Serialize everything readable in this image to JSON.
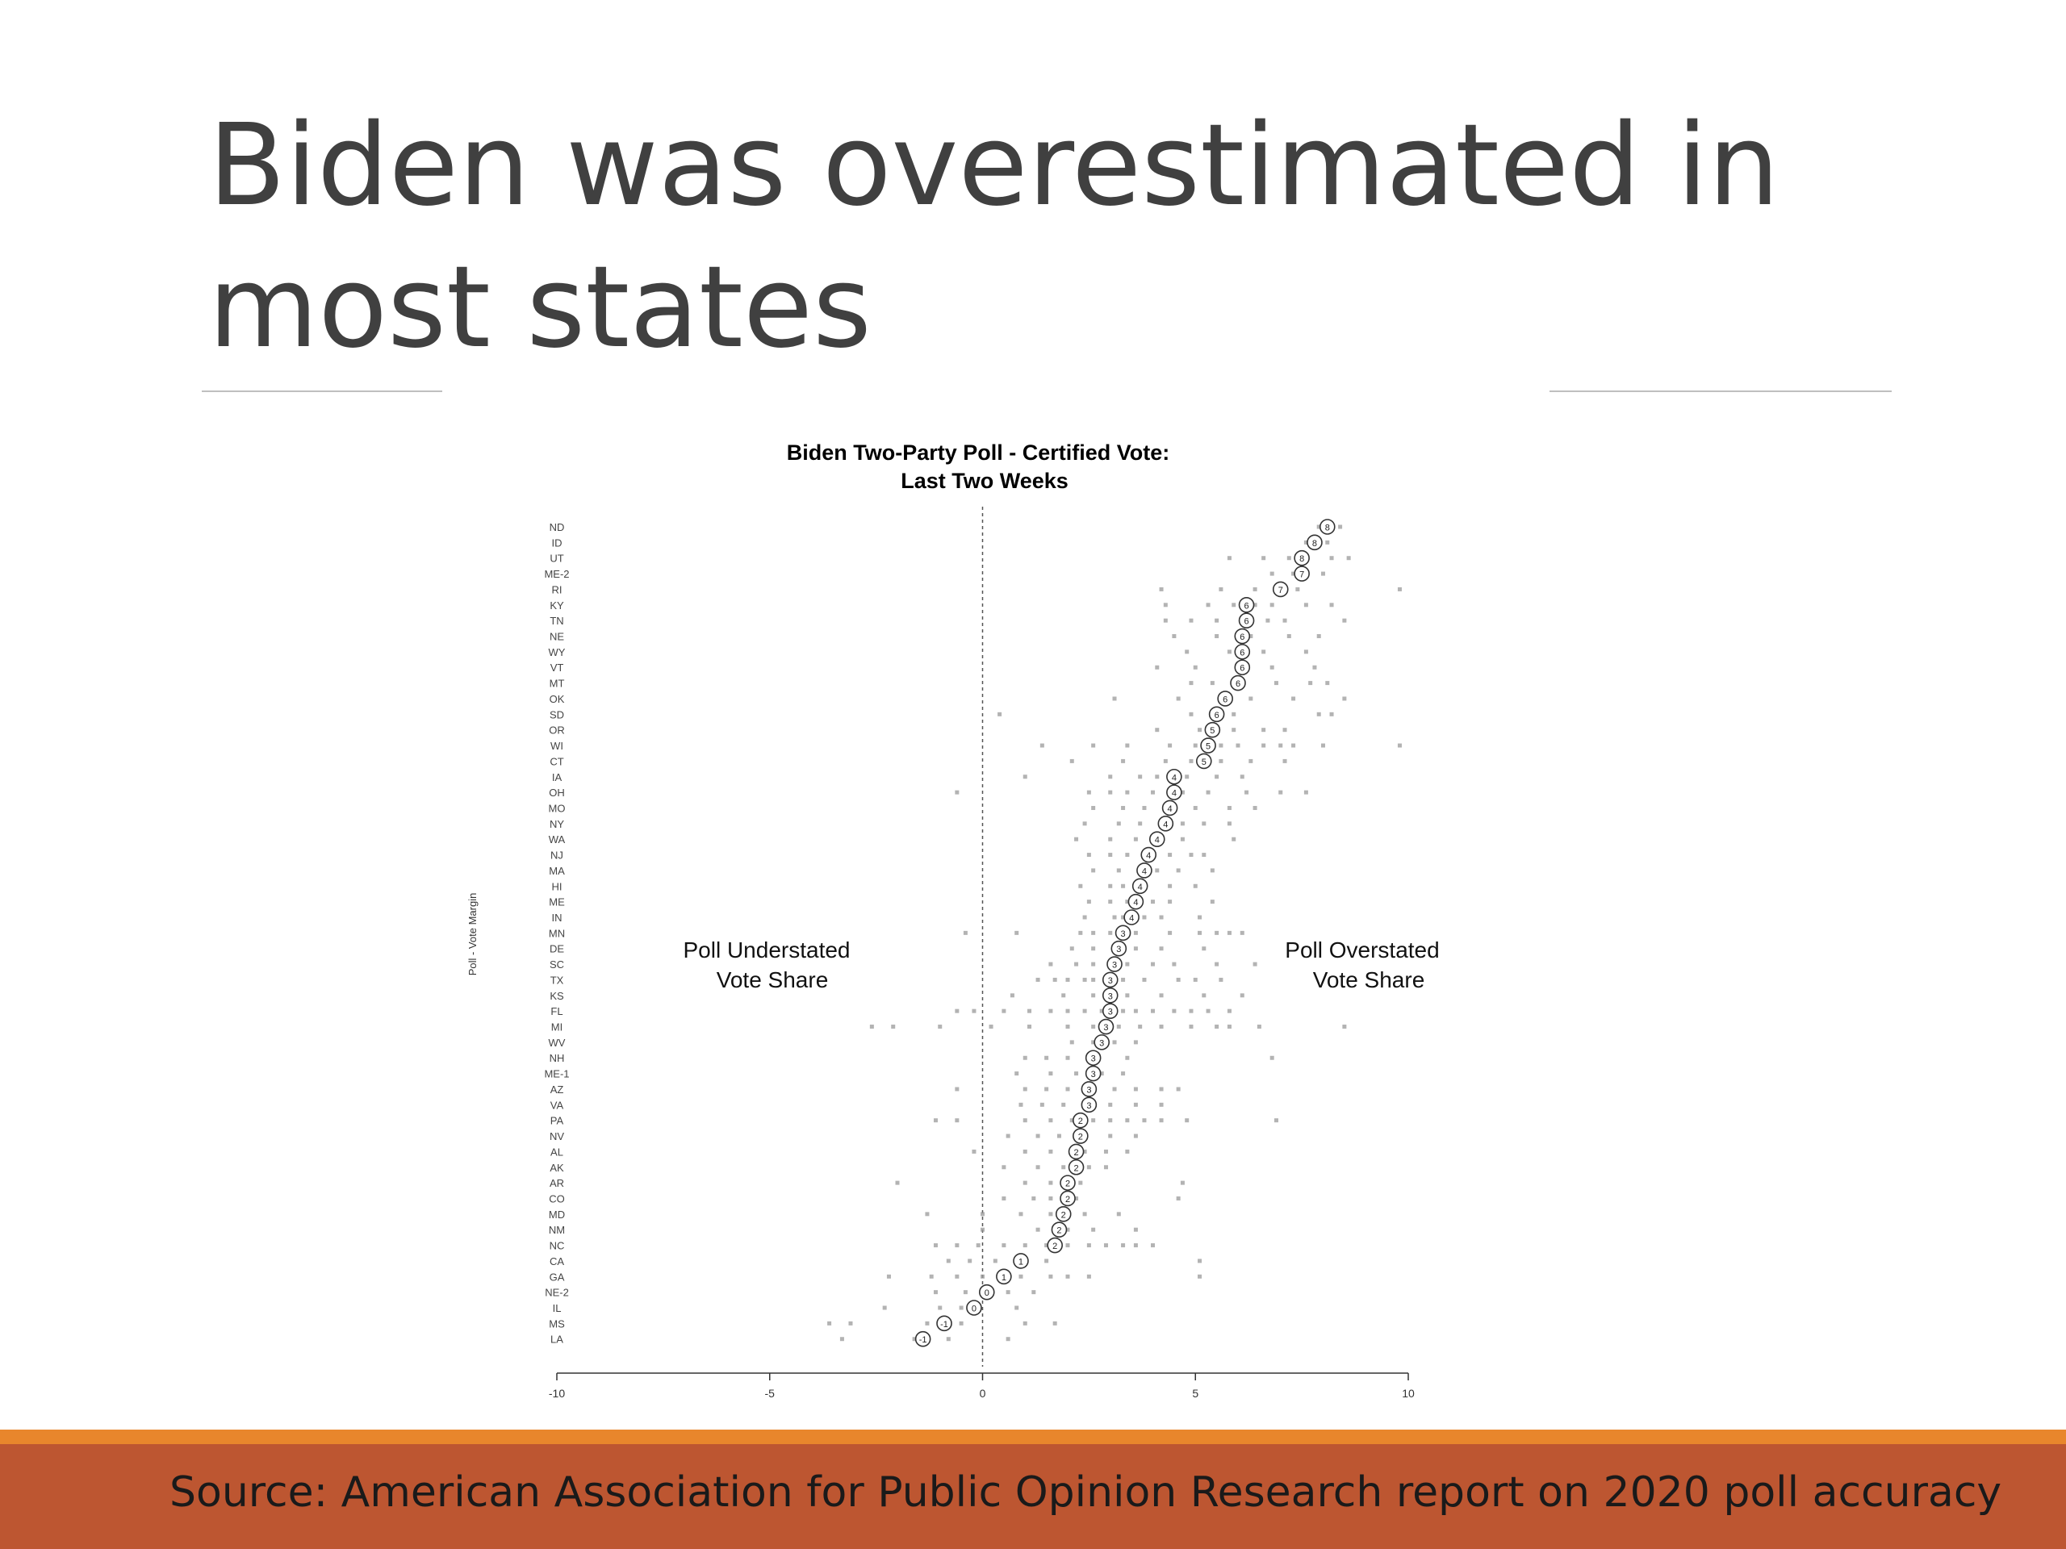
{
  "slide": {
    "title_line1": "Biden was overestimated in",
    "title_line2": "most states",
    "source": "Source: American Association for Public Opinion Research report on 2020 poll accuracy"
  },
  "chart_data": {
    "type": "scatter",
    "title_line1": "Biden Two-Party Poll - Certified Vote:",
    "title_line2": "Last Two Weeks",
    "ylabel": "Poll - Vote Margin",
    "xlim": [
      -10,
      10
    ],
    "x_ticks": [
      -10,
      -5,
      0,
      5,
      10
    ],
    "x_tick_labels": [
      "-10",
      "-5",
      "0",
      "5",
      "10"
    ],
    "reference_line": 0,
    "annotations": {
      "left_line1": "Poll Understated",
      "left_line2": "Vote Share",
      "right_line1": "Poll Overstated",
      "right_line2": "Vote Share"
    },
    "states": [
      "ND",
      "ID",
      "UT",
      "ME-2",
      "RI",
      "KY",
      "TN",
      "NE",
      "WY",
      "VT",
      "MT",
      "OK",
      "SD",
      "OR",
      "WI",
      "CT",
      "IA",
      "OH",
      "MO",
      "NY",
      "WA",
      "NJ",
      "MA",
      "HI",
      "ME",
      "IN",
      "MN",
      "DE",
      "SC",
      "TX",
      "KS",
      "FL",
      "MI",
      "WV",
      "NH",
      "ME-1",
      "AZ",
      "VA",
      "PA",
      "NV",
      "AL",
      "AK",
      "AR",
      "CO",
      "MD",
      "NM",
      "NC",
      "CA",
      "GA",
      "NE-2",
      "IL",
      "MS",
      "LA"
    ],
    "averages": [
      8.1,
      7.8,
      7.5,
      7.5,
      7.0,
      6.2,
      6.2,
      6.1,
      6.1,
      6.1,
      6.0,
      5.7,
      5.5,
      5.4,
      5.3,
      5.2,
      4.5,
      4.5,
      4.4,
      4.3,
      4.1,
      3.9,
      3.8,
      3.7,
      3.6,
      3.5,
      3.3,
      3.2,
      3.1,
      3.0,
      3.0,
      3.0,
      2.9,
      2.8,
      2.6,
      2.6,
      2.5,
      2.5,
      2.3,
      2.3,
      2.2,
      2.2,
      2.0,
      2.0,
      1.9,
      1.8,
      1.7,
      0.9,
      0.5,
      0.1,
      -0.2,
      -0.9,
      -1.4
    ],
    "average_labels": [
      "8",
      "8",
      "8",
      "7",
      "7",
      "6",
      "6",
      "6",
      "6",
      "6",
      "6",
      "6",
      "6",
      "5",
      "5",
      "5",
      "4",
      "4",
      "4",
      "4",
      "4",
      "4",
      "4",
      "4",
      "4",
      "4",
      "3",
      "3",
      "3",
      "3",
      "3",
      "3",
      "3",
      "3",
      "3",
      "3",
      "3",
      "3",
      "2",
      "2",
      "2",
      "2",
      "2",
      "2",
      "2",
      "2",
      "2",
      "1",
      "1",
      "0",
      "0",
      "-1",
      "-1"
    ],
    "poll_points": [
      [
        7.9,
        8.4
      ],
      [
        7.6,
        8.1
      ],
      [
        5.8,
        6.6,
        7.2,
        8.2,
        8.6
      ],
      [
        6.8,
        7.3,
        8.0
      ],
      [
        4.2,
        5.6,
        6.4,
        7.4,
        9.8
      ],
      [
        4.3,
        5.3,
        5.9,
        6.4,
        6.8,
        7.6,
        8.2
      ],
      [
        4.3,
        4.9,
        5.5,
        6.7,
        7.1,
        8.5
      ],
      [
        4.5,
        5.5,
        6.3,
        7.2,
        7.9
      ],
      [
        4.8,
        5.8,
        6.6,
        7.6
      ],
      [
        4.1,
        5.0,
        6.8,
        7.8
      ],
      [
        4.9,
        5.4,
        6.9,
        7.7,
        8.1
      ],
      [
        3.1,
        4.6,
        6.3,
        7.3,
        8.5
      ],
      [
        0.4,
        4.9,
        5.9,
        7.9,
        8.2
      ],
      [
        4.1,
        5.1,
        5.9,
        6.6,
        7.1
      ],
      [
        1.4,
        2.6,
        3.4,
        4.4,
        5.0,
        5.6,
        6.0,
        6.6,
        7.0,
        7.3,
        8.0,
        9.8
      ],
      [
        2.1,
        3.3,
        4.3,
        4.9,
        5.6,
        6.3,
        7.1
      ],
      [
        1.0,
        3.0,
        3.7,
        4.1,
        4.8,
        5.5,
        6.1
      ],
      [
        -0.6,
        2.5,
        3.0,
        3.4,
        4.0,
        4.7,
        5.3,
        6.2,
        7.0,
        7.6
      ],
      [
        2.6,
        3.3,
        3.8,
        5.0,
        5.8,
        6.4
      ],
      [
        2.4,
        3.2,
        3.7,
        4.7,
        5.2,
        5.8
      ],
      [
        2.2,
        3.0,
        3.6,
        4.7,
        5.9
      ],
      [
        2.5,
        3.0,
        3.4,
        4.4,
        4.9,
        5.2
      ],
      [
        2.6,
        3.2,
        4.1,
        4.6,
        5.4
      ],
      [
        2.3,
        3.0,
        3.3,
        4.4,
        5.0
      ],
      [
        2.5,
        3.0,
        3.4,
        4.0,
        4.4,
        5.4
      ],
      [
        2.4,
        3.1,
        3.3,
        3.8,
        4.2,
        5.1
      ],
      [
        -0.4,
        0.8,
        2.3,
        2.6,
        3.0,
        3.6,
        4.4,
        5.1,
        5.5,
        5.8,
        6.1
      ],
      [
        2.1,
        2.6,
        3.1,
        3.6,
        4.2,
        5.2
      ],
      [
        1.6,
        2.2,
        2.6,
        3.4,
        4.0,
        4.5,
        5.5,
        6.4
      ],
      [
        1.3,
        1.7,
        2.0,
        2.4,
        2.6,
        3.3,
        3.8,
        4.6,
        5.0,
        5.6
      ],
      [
        0.7,
        1.9,
        2.6,
        3.4,
        4.2,
        5.2,
        6.1
      ],
      [
        -0.6,
        -0.2,
        0.5,
        1.1,
        1.6,
        2.0,
        2.4,
        2.8,
        3.3,
        3.6,
        4.0,
        4.5,
        4.9,
        5.3,
        5.8
      ],
      [
        -2.6,
        -2.1,
        -1.0,
        0.2,
        1.1,
        2.0,
        2.6,
        2.9,
        3.2,
        3.7,
        4.2,
        4.9,
        5.5,
        5.8,
        6.5,
        8.5
      ],
      [
        2.1,
        2.6,
        3.1,
        3.6
      ],
      [
        1.0,
        1.5,
        2.0,
        2.6,
        3.4,
        6.8
      ],
      [
        0.8,
        1.6,
        2.2,
        2.8,
        3.3
      ],
      [
        -0.6,
        1.0,
        1.5,
        2.0,
        2.6,
        3.1,
        3.6,
        4.2,
        4.6
      ],
      [
        0.9,
        1.4,
        1.9,
        2.4,
        3.0,
        3.6,
        4.2
      ],
      [
        -1.1,
        -0.6,
        1.0,
        1.6,
        2.1,
        2.6,
        3.0,
        3.4,
        3.8,
        4.2,
        4.8,
        6.9
      ],
      [
        0.6,
        1.3,
        1.8,
        2.4,
        3.0,
        3.6
      ],
      [
        -0.2,
        1.0,
        1.6,
        2.4,
        2.9,
        3.4
      ],
      [
        0.5,
        1.3,
        1.9,
        2.5,
        2.9
      ],
      [
        -2.0,
        1.0,
        1.6,
        2.3,
        4.7
      ],
      [
        0.5,
        1.2,
        1.6,
        2.2,
        4.6
      ],
      [
        -1.3,
        0.0,
        0.9,
        1.6,
        2.4,
        3.2
      ],
      [
        0.0,
        1.3,
        2.0,
        2.6,
        3.6
      ],
      [
        -1.1,
        -0.6,
        -0.1,
        0.5,
        1.0,
        1.5,
        2.0,
        2.5,
        2.9,
        3.3,
        3.6,
        4.0
      ],
      [
        -0.8,
        -0.3,
        0.3,
        1.5,
        5.1
      ],
      [
        -2.2,
        -1.2,
        -0.6,
        0.0,
        0.9,
        1.6,
        2.0,
        2.5,
        5.1
      ],
      [
        -1.1,
        -0.4,
        0.6,
        1.2
      ],
      [
        -2.3,
        -1.0,
        -0.5,
        0.8
      ],
      [
        -3.6,
        -3.1,
        -1.3,
        -0.5,
        1.0,
        1.7
      ],
      [
        -3.3,
        -1.6,
        -0.8,
        0.6
      ]
    ]
  }
}
